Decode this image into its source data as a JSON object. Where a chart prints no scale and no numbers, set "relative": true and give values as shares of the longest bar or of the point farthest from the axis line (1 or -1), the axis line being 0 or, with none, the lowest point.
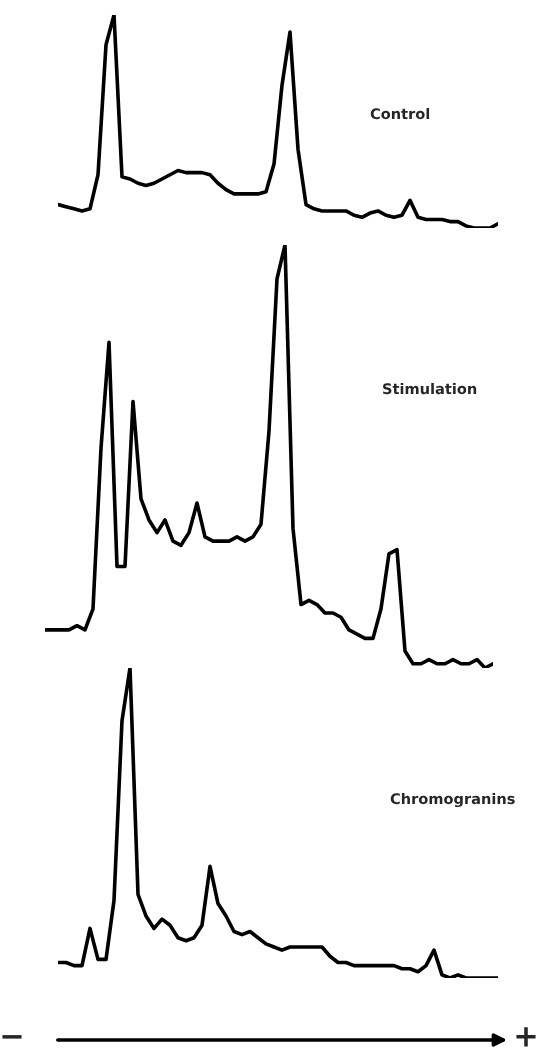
{
  "chart_data": [
    {
      "type": "line",
      "title": "Control",
      "relative": true,
      "categories": [
        null,
        null,
        null,
        null,
        null,
        null,
        null,
        null,
        null,
        null,
        null,
        null,
        null,
        null,
        null,
        null,
        null,
        null,
        null,
        null,
        null,
        null,
        null,
        null,
        null,
        null,
        null,
        null,
        null,
        null,
        null,
        null,
        null,
        null,
        null,
        null,
        null,
        null,
        null,
        null,
        null,
        null,
        null,
        null,
        null,
        null,
        null,
        null,
        null,
        null,
        null,
        null,
        null,
        null,
        null,
        null
      ],
      "series": [
        {
          "color": "#000000",
          "values": [
            0.11,
            0.1,
            0.09,
            0.08,
            0.09,
            0.25,
            0.86,
            1.0,
            0.24,
            0.23,
            0.21,
            0.2,
            0.21,
            0.23,
            0.25,
            0.27,
            0.26,
            0.26,
            0.26,
            0.25,
            0.21,
            0.18,
            0.16,
            0.16,
            0.16,
            0.16,
            0.17,
            0.3,
            0.67,
            0.92,
            0.37,
            0.11,
            0.09,
            0.08,
            0.08,
            0.08,
            0.08,
            0.06,
            0.05,
            0.07,
            0.08,
            0.06,
            0.05,
            0.06,
            0.13,
            0.05,
            0.04,
            0.04,
            0.04,
            0.03,
            0.03,
            0.01,
            0.0,
            0.0,
            0.0,
            0.02
          ]
        }
      ]
    },
    {
      "type": "line",
      "title": "Stimulation",
      "relative": true,
      "categories": [
        null,
        null,
        null,
        null,
        null,
        null,
        null,
        null,
        null,
        null,
        null,
        null,
        null,
        null,
        null,
        null,
        null,
        null,
        null,
        null,
        null,
        null,
        null,
        null,
        null,
        null,
        null,
        null,
        null,
        null,
        null,
        null,
        null,
        null,
        null,
        null,
        null,
        null,
        null,
        null,
        null,
        null,
        null,
        null,
        null,
        null,
        null,
        null,
        null,
        null,
        null,
        null,
        null,
        null,
        null,
        null,
        null
      ],
      "series": [
        {
          "color": "#000000",
          "values": [
            0.09,
            0.09,
            0.09,
            0.09,
            0.1,
            0.09,
            0.14,
            0.52,
            0.77,
            0.24,
            0.24,
            0.63,
            0.4,
            0.35,
            0.32,
            0.35,
            0.3,
            0.29,
            0.32,
            0.39,
            0.31,
            0.3,
            0.3,
            0.3,
            0.31,
            0.3,
            0.31,
            0.34,
            0.56,
            0.92,
            1.0,
            0.33,
            0.15,
            0.16,
            0.15,
            0.13,
            0.13,
            0.12,
            0.09,
            0.08,
            0.07,
            0.07,
            0.14,
            0.27,
            0.28,
            0.04,
            0.01,
            0.01,
            0.02,
            0.01,
            0.01,
            0.02,
            0.01,
            0.01,
            0.02,
            0.0,
            0.01
          ]
        }
      ]
    },
    {
      "type": "line",
      "title": "Chromogranins",
      "relative": true,
      "categories": [
        null,
        null,
        null,
        null,
        null,
        null,
        null,
        null,
        null,
        null,
        null,
        null,
        null,
        null,
        null,
        null,
        null,
        null,
        null,
        null,
        null,
        null,
        null,
        null,
        null,
        null,
        null,
        null,
        null,
        null,
        null,
        null,
        null,
        null,
        null,
        null,
        null,
        null,
        null,
        null,
        null,
        null,
        null,
        null,
        null,
        null,
        null,
        null,
        null,
        null,
        null,
        null,
        null,
        null,
        null,
        null
      ],
      "series": [
        {
          "color": "#000000",
          "values": [
            0.05,
            0.05,
            0.04,
            0.04,
            0.16,
            0.06,
            0.06,
            0.25,
            0.83,
            1.0,
            0.27,
            0.2,
            0.16,
            0.19,
            0.17,
            0.13,
            0.12,
            0.13,
            0.17,
            0.36,
            0.24,
            0.2,
            0.15,
            0.14,
            0.15,
            0.13,
            0.11,
            0.1,
            0.09,
            0.1,
            0.1,
            0.1,
            0.1,
            0.1,
            0.07,
            0.05,
            0.05,
            0.04,
            0.04,
            0.04,
            0.04,
            0.04,
            0.04,
            0.03,
            0.03,
            0.02,
            0.04,
            0.09,
            0.01,
            0.0,
            0.01,
            0.0,
            0.0,
            0.0,
            0.0,
            0.0
          ]
        }
      ],
      "annotations": [
        "−",
        "+"
      ]
    }
  ]
}
